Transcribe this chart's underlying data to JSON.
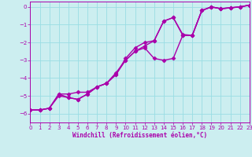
{
  "xlabel": "Windchill (Refroidissement éolien,°C)",
  "xlim": [
    0,
    23
  ],
  "ylim": [
    -6.5,
    0.3
  ],
  "yticks": [
    0,
    -1,
    -2,
    -3,
    -4,
    -5,
    -6
  ],
  "xticks": [
    0,
    1,
    2,
    3,
    4,
    5,
    6,
    7,
    8,
    9,
    10,
    11,
    12,
    13,
    14,
    15,
    16,
    17,
    18,
    19,
    20,
    21,
    22,
    23
  ],
  "bg_color": "#cceef0",
  "grid_color": "#99dde4",
  "line_color": "#aa00aa",
  "line_width": 1.0,
  "marker": "D",
  "marker_size": 2.5,
  "line1_x": [
    0,
    1,
    2,
    3,
    4,
    5,
    6,
    7,
    8,
    9,
    10,
    11,
    12,
    13,
    14,
    15,
    16,
    17,
    18,
    19,
    20,
    21,
    22,
    23
  ],
  "line1_y": [
    -5.8,
    -5.8,
    -5.7,
    -4.9,
    -4.9,
    -4.8,
    -4.8,
    -4.5,
    -4.3,
    -3.7,
    -3.0,
    -2.5,
    -2.2,
    -1.9,
    -0.8,
    -0.6,
    -1.6,
    -1.6,
    -0.2,
    0.0,
    -0.1,
    -0.05,
    0.0,
    0.1
  ],
  "line2_x": [
    0,
    1,
    2,
    3,
    4,
    5,
    6,
    7,
    8,
    9,
    10,
    11,
    12,
    13,
    14,
    15,
    16,
    17,
    18,
    19,
    20,
    21,
    22,
    23
  ],
  "line2_y": [
    -5.8,
    -5.8,
    -5.7,
    -4.9,
    -5.1,
    -5.2,
    -4.9,
    -4.5,
    -4.3,
    -3.8,
    -3.0,
    -2.5,
    -2.3,
    -2.9,
    -3.0,
    -2.9,
    -1.6,
    -1.6,
    -0.2,
    0.0,
    -0.1,
    -0.05,
    0.0,
    0.1
  ],
  "line3_x": [
    0,
    1,
    2,
    3,
    4,
    5,
    6,
    7,
    8,
    9,
    10,
    11,
    12,
    13,
    14,
    15,
    16,
    17,
    18,
    19,
    20,
    21,
    22,
    23
  ],
  "line3_y": [
    -5.8,
    -5.8,
    -5.7,
    -5.0,
    -5.1,
    -5.2,
    -4.9,
    -4.5,
    -4.3,
    -3.8,
    -2.9,
    -2.3,
    -2.0,
    -1.9,
    -0.8,
    -0.6,
    -1.55,
    -1.6,
    -0.2,
    0.0,
    -0.1,
    -0.05,
    0.0,
    0.1
  ]
}
